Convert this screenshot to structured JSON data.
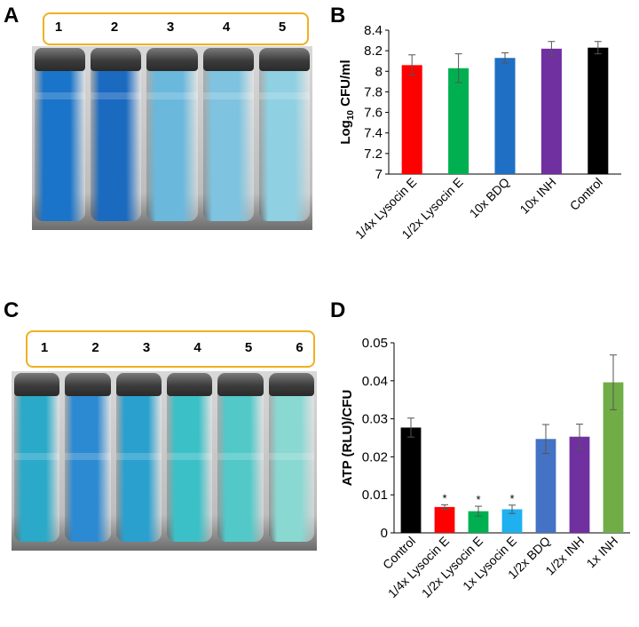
{
  "panels": {
    "A": {
      "letter": "A",
      "tube_labels": [
        "1",
        "2",
        "3",
        "4",
        "5"
      ],
      "liquid_colors": [
        "#1a74c9",
        "#1a6ac0",
        "#6ab8dc",
        "#7ec4e0",
        "#8fd0e2"
      ]
    },
    "C": {
      "letter": "C",
      "tube_labels": [
        "1",
        "2",
        "3",
        "4",
        "5",
        "6"
      ],
      "liquid_colors": [
        "#2aa9c8",
        "#2c8ad2",
        "#2aa0cf",
        "#3cc0c7",
        "#52c8c8",
        "#8ad8d2"
      ]
    },
    "B": {
      "letter": "B"
    },
    "D": {
      "letter": "D"
    }
  },
  "chart_data": [
    {
      "panel": "B",
      "type": "bar",
      "categories": [
        "1/4x Lysocin E",
        "1/2x Lysocin E",
        "10x BDQ",
        "10x INH",
        "Control"
      ],
      "values": [
        8.06,
        8.03,
        8.13,
        8.22,
        8.23
      ],
      "errors": [
        0.1,
        0.14,
        0.05,
        0.07,
        0.06
      ],
      "colors": [
        "#ff0000",
        "#00b050",
        "#1f6fc5",
        "#7030a0",
        "#000000"
      ],
      "ylabel_main": "Log",
      "ylabel_sub": "10",
      "ylabel_rest": " CFU/ml",
      "ylim": [
        7,
        8.4
      ],
      "yticks": [
        "7",
        "7.2",
        "7.4",
        "7.6",
        "7.8",
        "8",
        "8.2",
        "8.4"
      ],
      "ytick_values": [
        7,
        7.2,
        7.4,
        7.6,
        7.8,
        8,
        8.2,
        8.4
      ]
    },
    {
      "panel": "D",
      "type": "bar",
      "categories": [
        "Control",
        "1/4x Lysocin E",
        "1/2x Lysocin E",
        "1x Lysocin E",
        "1/2x BDQ",
        "1/2x INH",
        "1x INH"
      ],
      "values": [
        0.0277,
        0.0068,
        0.0057,
        0.0062,
        0.0247,
        0.0253,
        0.0396
      ],
      "errors": [
        0.0025,
        0.0006,
        0.0013,
        0.0011,
        0.0038,
        0.0033,
        0.0072
      ],
      "colors": [
        "#000000",
        "#ff0000",
        "#00b050",
        "#1fb0f0",
        "#4472c4",
        "#7030a0",
        "#70ad47"
      ],
      "significance": [
        "",
        "*",
        "*",
        "*",
        "",
        "",
        ""
      ],
      "ylabel": "ATP (RLU)/CFU",
      "ylim": [
        0,
        0.05
      ],
      "yticks": [
        "0",
        "0.01",
        "0.02",
        "0.03",
        "0.04",
        "0.05"
      ],
      "ytick_values": [
        0,
        0.01,
        0.02,
        0.03,
        0.04,
        0.05
      ]
    }
  ]
}
